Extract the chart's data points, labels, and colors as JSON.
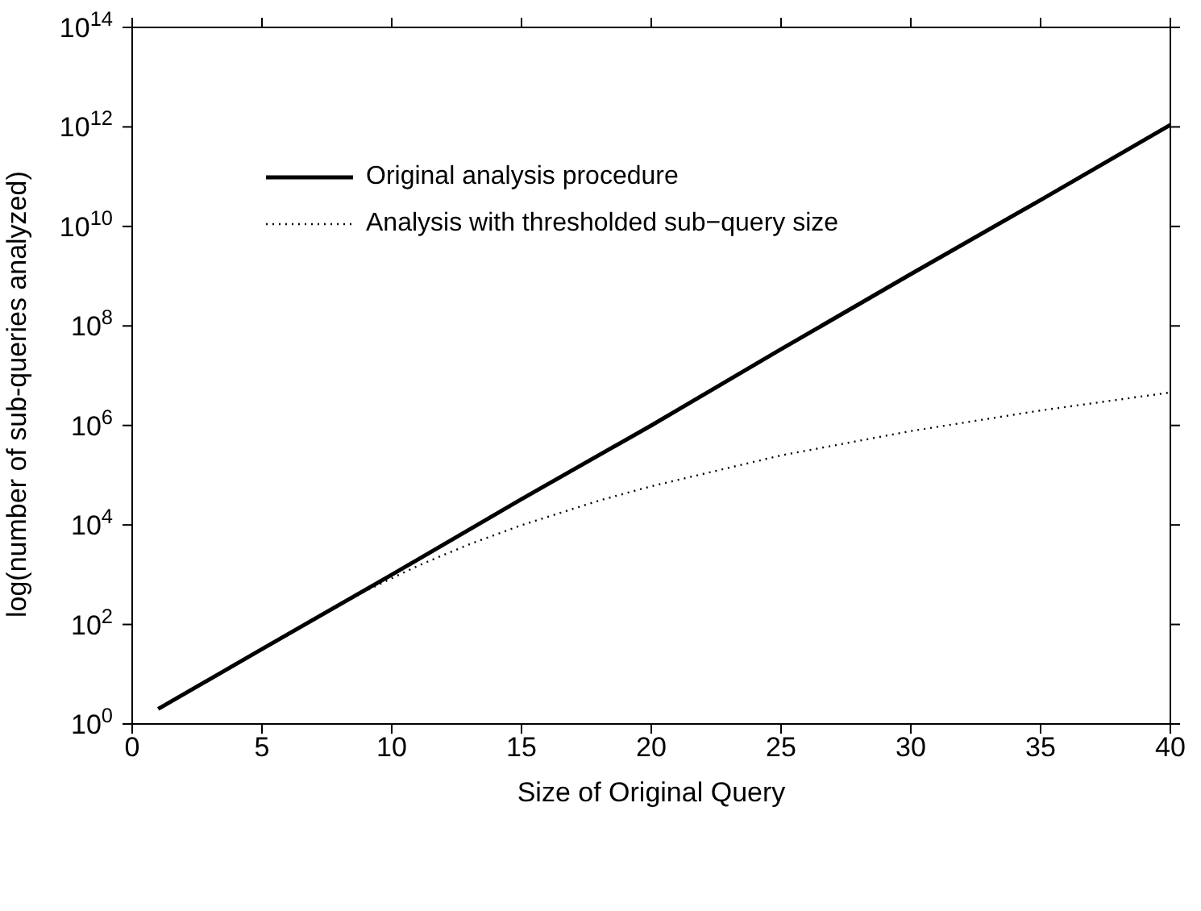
{
  "chart_data": {
    "type": "line",
    "xlabel": "Size of Original Query",
    "ylabel": "log(number of sub-queries analyzed)",
    "xlim": [
      0,
      40
    ],
    "xticks": [
      0,
      5,
      10,
      15,
      20,
      25,
      30,
      35,
      40
    ],
    "ylim": [
      1,
      100000000000000
    ],
    "log": true,
    "yticks": [
      {
        "value": 1,
        "label": "10$^{0}$"
      },
      {
        "value": 100,
        "label": "10$^{2}$"
      },
      {
        "value": 10000,
        "label": "10$^{4}$"
      },
      {
        "value": 1000000,
        "label": "10$^{6}$"
      },
      {
        "value": 100000000,
        "label": "10$^{8}$"
      },
      {
        "value": 10000000000,
        "label": "10$^{10}$"
      },
      {
        "value": 1000000000000,
        "label": "10$^{12}$"
      },
      {
        "value": 100000000000000,
        "label": "10$^{14}$"
      }
    ],
    "legend": "top left",
    "marker": "none",
    "series": [
      {
        "name": "Original analysis procedure",
        "color": "#000000",
        "line_style": "solid",
        "x": [
          1,
          5,
          10,
          15,
          20,
          25,
          30,
          35,
          40
        ],
        "values": [
          2,
          32,
          1000,
          33000,
          1000000,
          34000000,
          1100000000,
          34000000000,
          1100000000000
        ]
      },
      {
        "name": "Analysis with thresholded sub−query size",
        "color": "#000000",
        "line_style": "dotted",
        "x": [
          8,
          9,
          10,
          11,
          12,
          13,
          15,
          18,
          20,
          25,
          30,
          35,
          40
        ],
        "values": [
          250,
          470,
          850,
          1500,
          2500,
          4100,
          9900,
          31000,
          60000,
          250000,
          770000,
          2000000,
          4600000
        ]
      }
    ]
  }
}
